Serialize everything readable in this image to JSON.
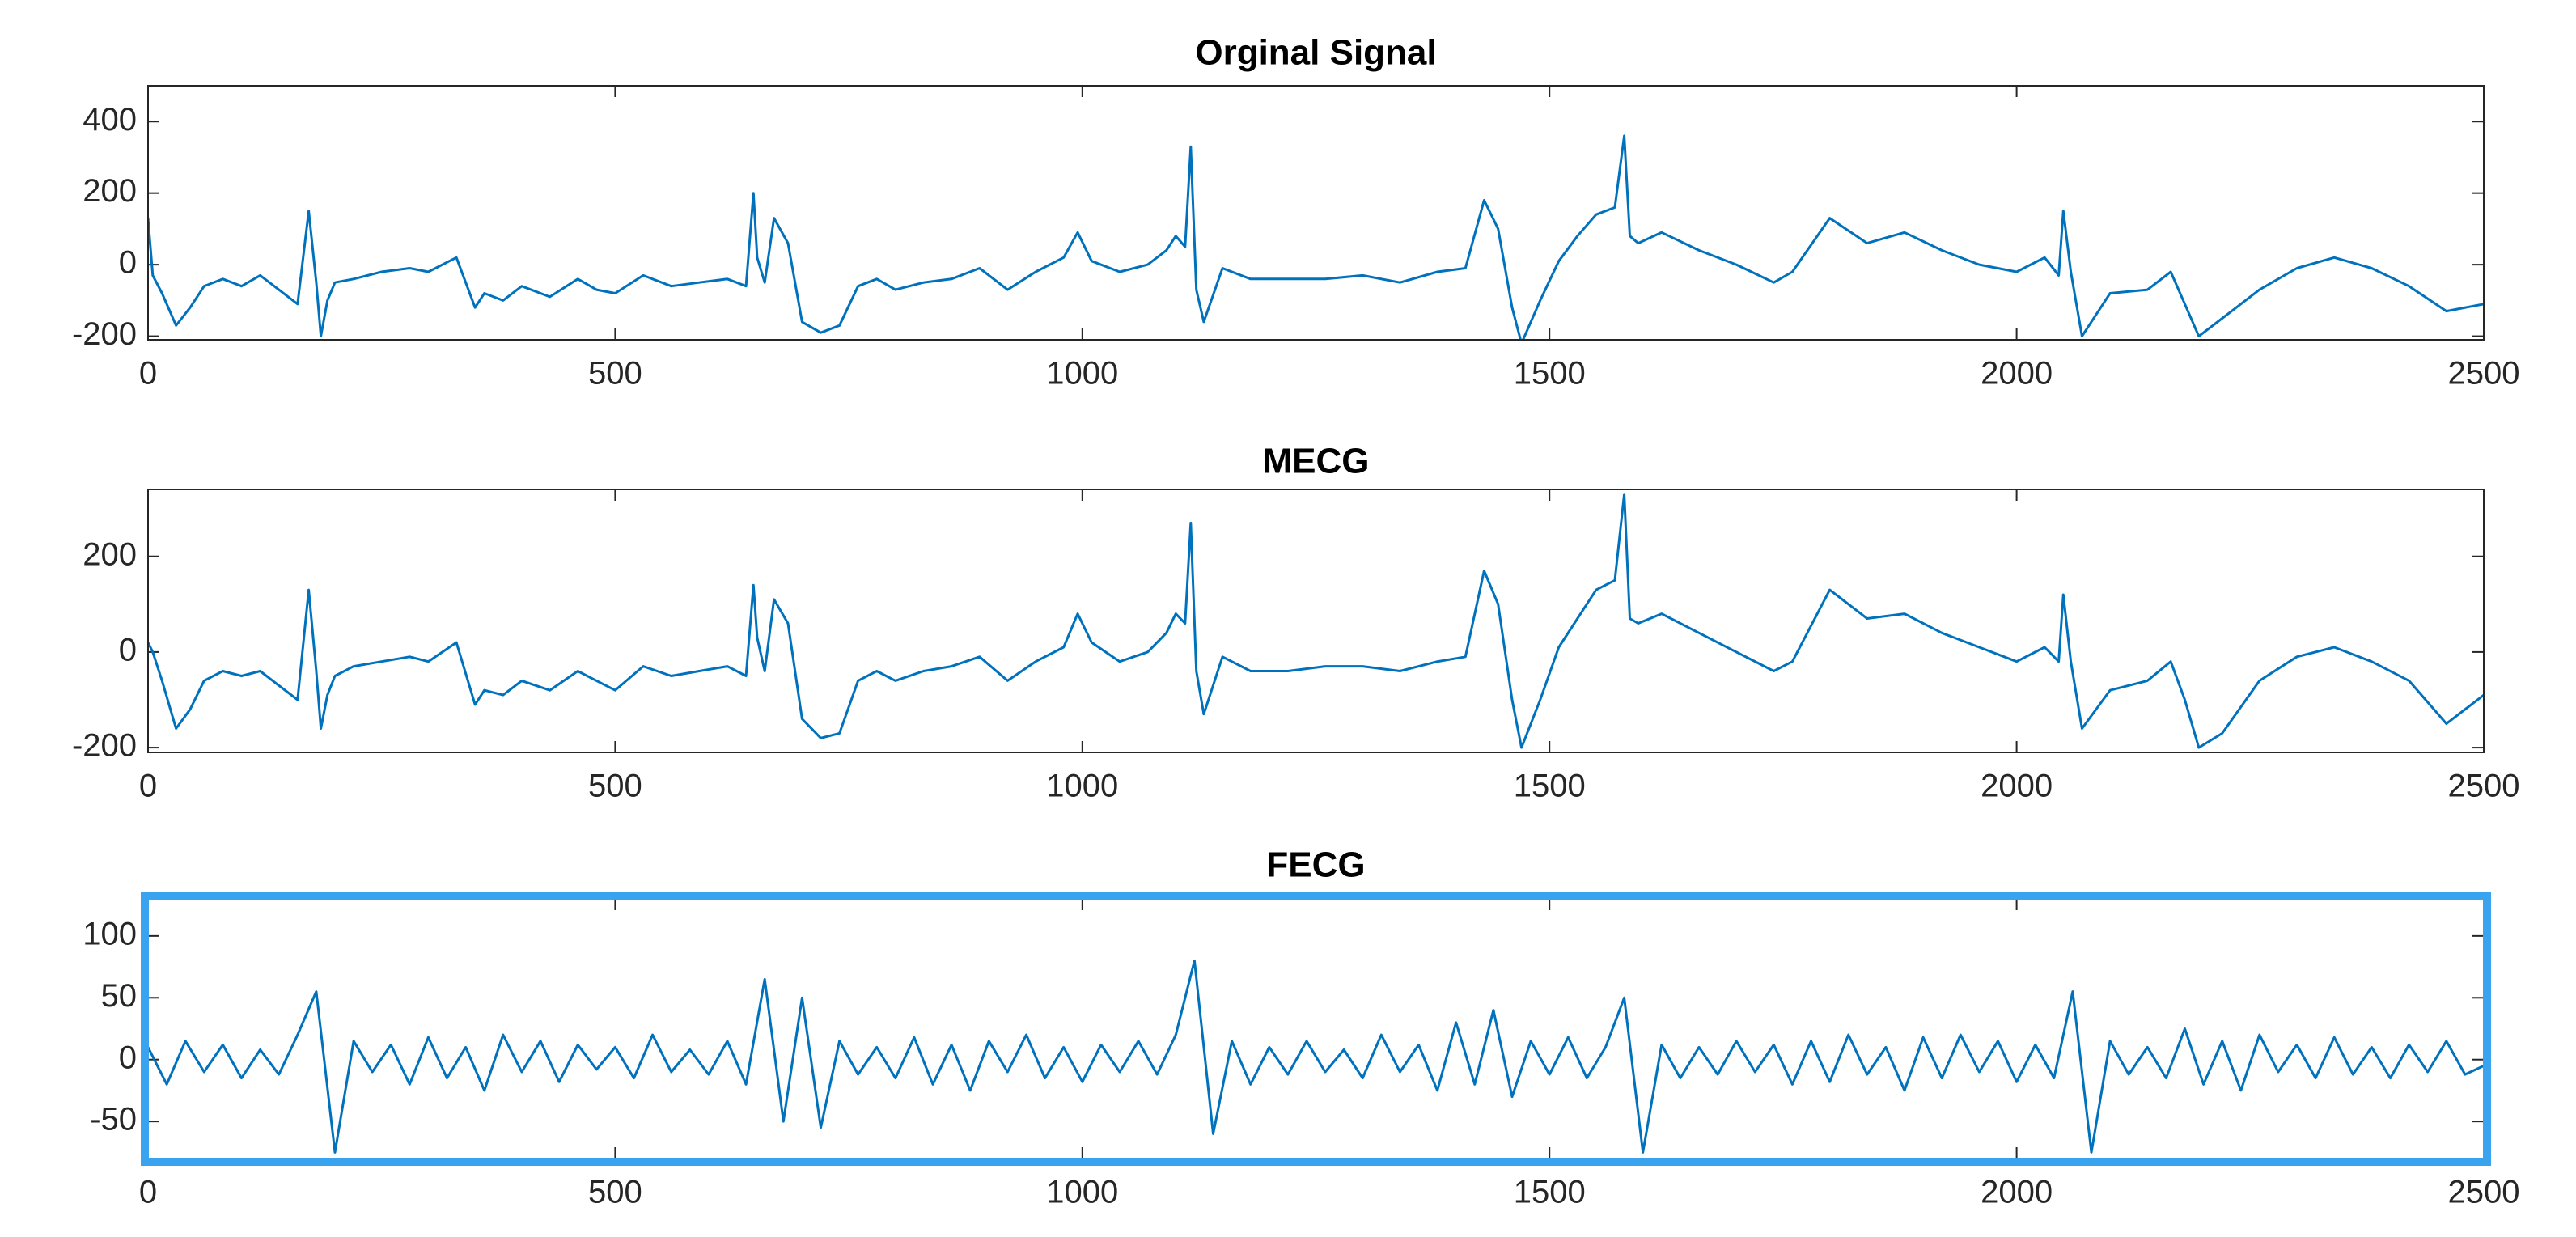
{
  "chart_data": [
    {
      "type": "line",
      "title": "Orginal Signal",
      "color": "#0072bd",
      "xlim": [
        0,
        2500
      ],
      "xticks": [
        0,
        500,
        1000,
        1500,
        2000,
        2500
      ],
      "ylim": [
        -210,
        500
      ],
      "yticks": [
        -200,
        0,
        200,
        400
      ],
      "x": [
        0,
        5,
        15,
        30,
        45,
        60,
        80,
        100,
        120,
        140,
        160,
        172,
        180,
        185,
        192,
        200,
        220,
        250,
        280,
        300,
        330,
        350,
        360,
        380,
        400,
        430,
        460,
        480,
        500,
        530,
        560,
        590,
        620,
        640,
        648,
        652,
        660,
        670,
        685,
        700,
        720,
        740,
        760,
        780,
        800,
        830,
        860,
        890,
        920,
        950,
        980,
        995,
        1010,
        1040,
        1070,
        1090,
        1100,
        1110,
        1116,
        1122,
        1130,
        1150,
        1180,
        1220,
        1260,
        1300,
        1340,
        1380,
        1410,
        1430,
        1445,
        1460,
        1470,
        1490,
        1510,
        1530,
        1550,
        1570,
        1580,
        1586,
        1595,
        1620,
        1660,
        1700,
        1740,
        1760,
        1800,
        1840,
        1880,
        1920,
        1960,
        2000,
        2030,
        2045,
        2050,
        2058,
        2070,
        2100,
        2140,
        2165,
        2180,
        2195,
        2220,
        2260,
        2300,
        2340,
        2380,
        2420,
        2460,
        2500
      ],
      "values": [
        130,
        -30,
        -80,
        -170,
        -120,
        -60,
        -40,
        -60,
        -30,
        -70,
        -110,
        150,
        -50,
        -200,
        -100,
        -50,
        -40,
        -20,
        -10,
        -20,
        20,
        -120,
        -80,
        -100,
        -60,
        -90,
        -40,
        -70,
        -80,
        -30,
        -60,
        -50,
        -40,
        -60,
        200,
        20,
        -50,
        130,
        60,
        -160,
        -190,
        -170,
        -60,
        -40,
        -70,
        -50,
        -40,
        -10,
        -70,
        -20,
        20,
        90,
        10,
        -20,
        0,
        40,
        80,
        50,
        330,
        -70,
        -160,
        -10,
        -40,
        -40,
        -40,
        -30,
        -50,
        -20,
        -10,
        180,
        100,
        -120,
        -220,
        -100,
        10,
        80,
        140,
        160,
        360,
        80,
        60,
        90,
        40,
        0,
        -50,
        -20,
        130,
        60,
        90,
        40,
        0,
        -20,
        20,
        -30,
        150,
        -20,
        -200,
        -80,
        -70,
        -20,
        -110,
        -200,
        -150,
        -70,
        -10,
        20,
        -10,
        -60,
        -130,
        -110
      ]
    },
    {
      "type": "line",
      "title": "MECG",
      "color": "#0072bd",
      "xlim": [
        0,
        2500
      ],
      "xticks": [
        0,
        500,
        1000,
        1500,
        2000,
        2500
      ],
      "ylim": [
        -210,
        340
      ],
      "yticks": [
        -200,
        0,
        200
      ],
      "x": [
        0,
        5,
        15,
        30,
        45,
        60,
        80,
        100,
        120,
        140,
        160,
        172,
        180,
        185,
        192,
        200,
        220,
        250,
        280,
        300,
        330,
        350,
        360,
        380,
        400,
        430,
        460,
        480,
        500,
        530,
        560,
        590,
        620,
        640,
        648,
        652,
        660,
        670,
        685,
        700,
        720,
        740,
        760,
        780,
        800,
        830,
        860,
        890,
        920,
        950,
        980,
        995,
        1010,
        1040,
        1070,
        1090,
        1100,
        1110,
        1116,
        1122,
        1130,
        1150,
        1180,
        1220,
        1260,
        1300,
        1340,
        1380,
        1410,
        1430,
        1445,
        1460,
        1470,
        1490,
        1510,
        1530,
        1550,
        1570,
        1580,
        1586,
        1595,
        1620,
        1660,
        1700,
        1740,
        1760,
        1800,
        1840,
        1880,
        1920,
        1960,
        2000,
        2030,
        2045,
        2050,
        2058,
        2070,
        2100,
        2140,
        2165,
        2180,
        2195,
        2220,
        2260,
        2300,
        2340,
        2380,
        2420,
        2460,
        2500
      ],
      "values": [
        20,
        0,
        -60,
        -160,
        -120,
        -60,
        -40,
        -50,
        -40,
        -70,
        -100,
        130,
        -40,
        -160,
        -90,
        -50,
        -30,
        -20,
        -10,
        -20,
        20,
        -110,
        -80,
        -90,
        -60,
        -80,
        -40,
        -60,
        -80,
        -30,
        -50,
        -40,
        -30,
        -50,
        140,
        30,
        -40,
        110,
        60,
        -140,
        -180,
        -170,
        -60,
        -40,
        -60,
        -40,
        -30,
        -10,
        -60,
        -20,
        10,
        80,
        20,
        -20,
        0,
        40,
        80,
        60,
        270,
        -40,
        -130,
        -10,
        -40,
        -40,
        -30,
        -30,
        -40,
        -20,
        -10,
        170,
        100,
        -100,
        -200,
        -100,
        10,
        70,
        130,
        150,
        330,
        70,
        60,
        80,
        40,
        0,
        -40,
        -20,
        130,
        70,
        80,
        40,
        10,
        -20,
        10,
        -20,
        120,
        -20,
        -160,
        -80,
        -60,
        -20,
        -100,
        -200,
        -170,
        -60,
        -10,
        10,
        -20,
        -60,
        -150,
        -90
      ]
    },
    {
      "type": "line",
      "title": "FECG",
      "color": "#0072bd",
      "selected": true,
      "xlim": [
        0,
        2500
      ],
      "xticks": [
        0,
        500,
        1000,
        1500,
        2000,
        2500
      ],
      "ylim": [
        -80,
        130
      ],
      "yticks": [
        -50,
        0,
        50,
        100
      ],
      "x": [
        0,
        20,
        40,
        60,
        80,
        100,
        120,
        140,
        160,
        180,
        200,
        220,
        240,
        260,
        280,
        300,
        320,
        340,
        360,
        380,
        400,
        420,
        440,
        460,
        480,
        500,
        520,
        540,
        560,
        580,
        600,
        620,
        640,
        660,
        680,
        700,
        720,
        740,
        760,
        780,
        800,
        820,
        840,
        860,
        880,
        900,
        920,
        940,
        960,
        980,
        1000,
        1020,
        1040,
        1060,
        1080,
        1100,
        1120,
        1140,
        1160,
        1180,
        1200,
        1220,
        1240,
        1260,
        1280,
        1300,
        1320,
        1340,
        1360,
        1380,
        1400,
        1420,
        1440,
        1460,
        1480,
        1500,
        1520,
        1540,
        1560,
        1580,
        1600,
        1620,
        1640,
        1660,
        1680,
        1700,
        1720,
        1740,
        1760,
        1780,
        1800,
        1820,
        1840,
        1860,
        1880,
        1900,
        1920,
        1940,
        1960,
        1980,
        2000,
        2020,
        2040,
        2060,
        2080,
        2100,
        2120,
        2140,
        2160,
        2180,
        2200,
        2220,
        2240,
        2260,
        2280,
        2300,
        2320,
        2340,
        2360,
        2380,
        2400,
        2420,
        2440,
        2460,
        2480,
        2500
      ],
      "values": [
        10,
        -20,
        15,
        -10,
        12,
        -15,
        8,
        -12,
        20,
        55,
        -75,
        15,
        -10,
        12,
        -20,
        18,
        -15,
        10,
        -25,
        20,
        -10,
        15,
        -18,
        12,
        -8,
        10,
        -15,
        20,
        -10,
        8,
        -12,
        15,
        -20,
        65,
        -50,
        50,
        -55,
        15,
        -12,
        10,
        -15,
        18,
        -20,
        12,
        -25,
        15,
        -10,
        20,
        -15,
        10,
        -18,
        12,
        -10,
        15,
        -12,
        20,
        80,
        -60,
        15,
        -20,
        10,
        -12,
        15,
        -10,
        8,
        -15,
        20,
        -10,
        12,
        -25,
        30,
        -20,
        40,
        -30,
        15,
        -12,
        18,
        -15,
        10,
        50,
        -75,
        12,
        -15,
        10,
        -12,
        15,
        -10,
        12,
        -20,
        15,
        -18,
        20,
        -12,
        10,
        -25,
        18,
        -15,
        20,
        -10,
        15,
        -18,
        12,
        -15,
        55,
        -75,
        15,
        -12,
        10,
        -15,
        25,
        -20,
        15,
        -25,
        20,
        -10,
        12,
        -15,
        18,
        -12,
        10,
        -15,
        12,
        -10,
        15,
        -12,
        -5
      ]
    }
  ]
}
